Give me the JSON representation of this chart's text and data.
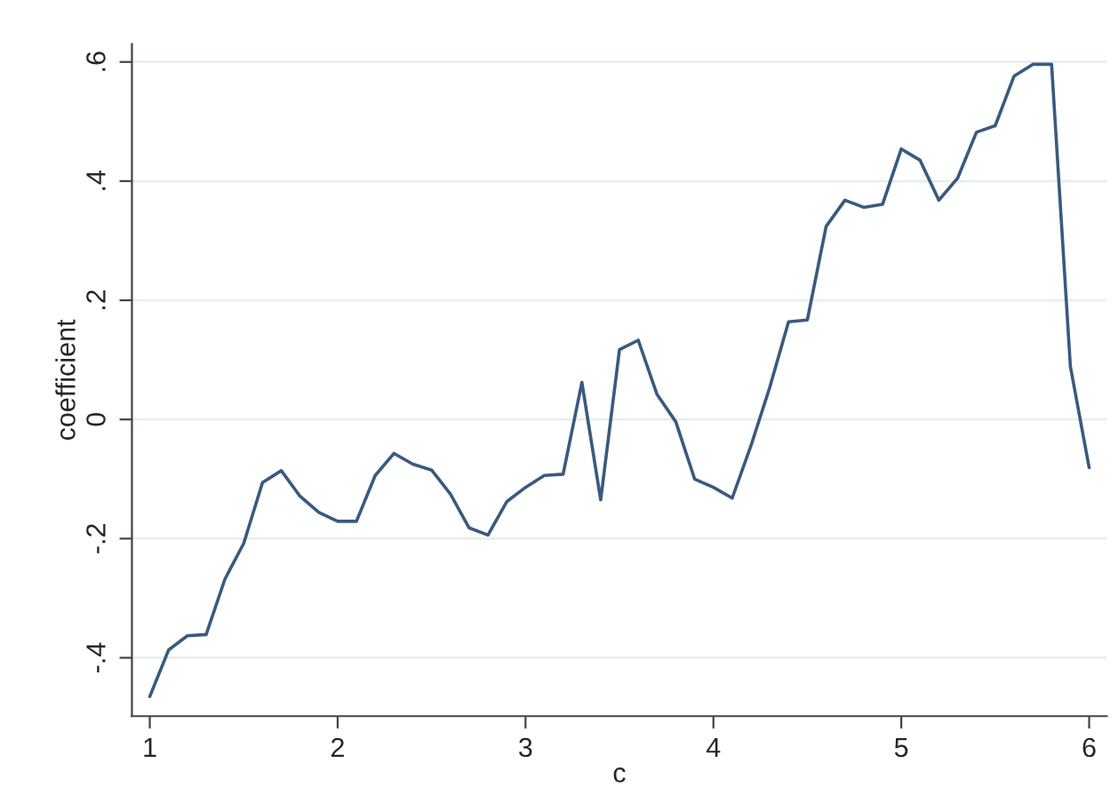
{
  "chart_data": {
    "type": "line",
    "xlabel": "c",
    "ylabel": "coefficient",
    "x": [
      1.0,
      1.1,
      1.2,
      1.3,
      1.4,
      1.5,
      1.6,
      1.7,
      1.8,
      1.9,
      2.0,
      2.1,
      2.2,
      2.3,
      2.4,
      2.5,
      2.6,
      2.7,
      2.8,
      2.9,
      3.0,
      3.1,
      3.2,
      3.3,
      3.4,
      3.5,
      3.6,
      3.7,
      3.8,
      3.9,
      4.0,
      4.1,
      4.2,
      4.3,
      4.4,
      4.5,
      4.6,
      4.7,
      4.8,
      4.9,
      5.0,
      5.1,
      5.2,
      5.3,
      5.4,
      5.5,
      5.6,
      5.7,
      5.8,
      5.9,
      6.0
    ],
    "series": [
      {
        "color": "#3a5a7e",
        "values": [
          -0.465,
          -0.387,
          -0.363,
          -0.361,
          -0.268,
          -0.208,
          -0.106,
          -0.086,
          -0.129,
          -0.156,
          -0.171,
          -0.171,
          -0.094,
          -0.057,
          -0.075,
          -0.085,
          -0.125,
          -0.182,
          -0.194,
          -0.138,
          -0.114,
          -0.094,
          -0.092,
          0.062,
          -0.135,
          0.117,
          0.133,
          0.042,
          -0.004,
          -0.1,
          -0.114,
          -0.132,
          -0.044,
          0.054,
          0.164,
          0.167,
          0.324,
          0.368,
          0.356,
          0.361,
          0.454,
          0.435,
          0.368,
          0.405,
          0.482,
          0.493,
          0.576,
          0.596,
          0.596,
          0.089,
          -0.081
        ]
      }
    ],
    "xlim": [
      0.905,
      6.094
    ],
    "ylim": [
      -0.498,
      0.63
    ],
    "xticks": [
      1,
      2,
      3,
      4,
      5,
      6
    ],
    "yticks": [
      {
        "value": 0.6,
        "label": ".6"
      },
      {
        "value": 0.4,
        "label": ".4"
      },
      {
        "value": 0.2,
        "label": ".2"
      },
      {
        "value": 0,
        "label": "0"
      },
      {
        "value": -0.2,
        "label": "-.2"
      },
      {
        "value": -0.4,
        "label": "-.4"
      }
    ],
    "grid": "y",
    "legend": false,
    "marker": "none",
    "line_style": "solid"
  }
}
